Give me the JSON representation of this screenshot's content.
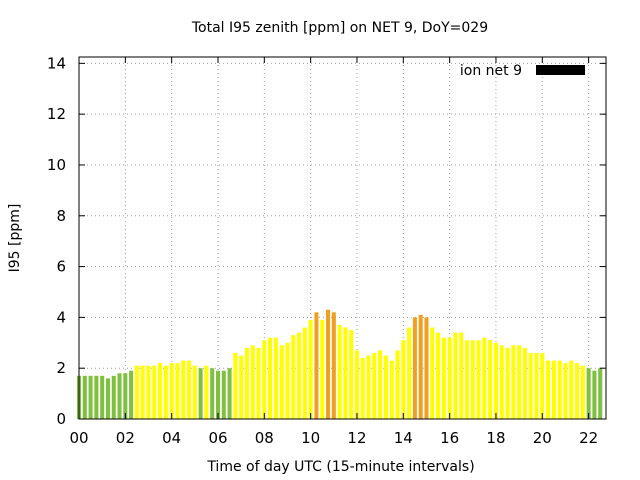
{
  "chart_data": {
    "type": "bar",
    "title": "Total I95 zenith [ppm] on NET 9, DoY=029",
    "xlabel": "Time of day UTC (15-minute intervals)",
    "ylabel": "I95 [ppm]",
    "xlim": [
      0,
      22.75
    ],
    "ylim": [
      0,
      14.25
    ],
    "xticks": [
      0,
      2,
      4,
      6,
      8,
      10,
      12,
      14,
      16,
      18,
      20,
      22
    ],
    "xtick_labels": [
      "00",
      "02",
      "04",
      "06",
      "08",
      "10",
      "12",
      "14",
      "16",
      "18",
      "20",
      "22"
    ],
    "yticks": [
      0,
      2,
      4,
      6,
      8,
      10,
      12,
      14
    ],
    "ytick_labels": [
      "0",
      "2",
      "4",
      "6",
      "8",
      "10",
      "12",
      "14"
    ],
    "grid": true,
    "legend": {
      "label": "ion net 9",
      "placement": "top-right",
      "color": "#000000"
    },
    "interval_hours": 0.25,
    "colors": {
      "green": "#80c040",
      "yellow": "#ffff00",
      "orange": "#f0a020"
    },
    "thresholds": {
      "green_max": 2.0,
      "orange_min": 4.0
    },
    "values": [
      1.7,
      1.7,
      1.7,
      1.7,
      1.7,
      1.6,
      1.7,
      1.8,
      1.8,
      1.9,
      2.1,
      2.1,
      2.1,
      2.1,
      2.2,
      2.1,
      2.2,
      2.2,
      2.3,
      2.3,
      2.1,
      2.0,
      2.1,
      2.0,
      1.9,
      1.9,
      2.0,
      2.6,
      2.5,
      2.8,
      2.9,
      2.8,
      3.1,
      3.2,
      3.2,
      2.9,
      3.0,
      3.3,
      3.4,
      3.6,
      3.9,
      4.2,
      3.9,
      4.3,
      4.2,
      3.7,
      3.6,
      3.5,
      2.7,
      2.4,
      2.5,
      2.6,
      2.7,
      2.5,
      2.3,
      2.7,
      3.1,
      3.6,
      4.0,
      4.1,
      4.0,
      3.6,
      3.4,
      3.2,
      3.2,
      3.4,
      3.4,
      3.1,
      3.1,
      3.1,
      3.2,
      3.1,
      3.0,
      2.9,
      2.8,
      2.9,
      2.9,
      2.8,
      2.6,
      2.6,
      2.6,
      2.3,
      2.3,
      2.3,
      2.2,
      2.3,
      2.2,
      2.1,
      2.0,
      1.9,
      2.0
    ]
  }
}
